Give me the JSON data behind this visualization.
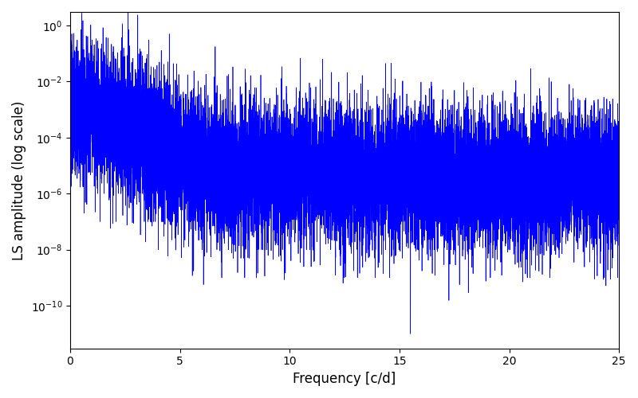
{
  "title": "",
  "xlabel": "Frequency [c/d]",
  "ylabel": "LS amplitude (log scale)",
  "line_color": "#0000ff",
  "line_width": 0.5,
  "xlim": [
    0,
    25
  ],
  "yscale": "log",
  "ylim_min": 3e-12,
  "ylim_max": 3.0,
  "yticks": [
    1.0,
    0.01,
    0.0001,
    1e-06,
    1e-08,
    1e-10
  ],
  "xticks": [
    0,
    5,
    10,
    15,
    20,
    25
  ],
  "background_color": "#ffffff",
  "n_points": 15000,
  "freq_max": 25.0,
  "seed": 7
}
